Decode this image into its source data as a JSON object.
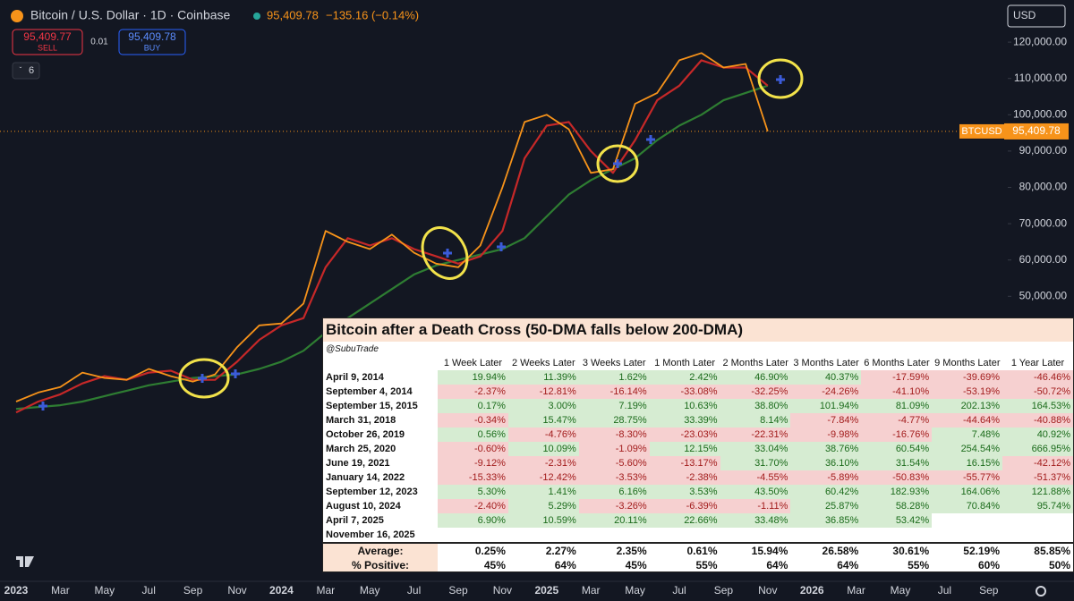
{
  "header": {
    "symbol": "Bitcoin / U.S. Dollar · 1D · Coinbase",
    "last": "95,409.78",
    "change": "−135.16 (−0.14%)",
    "sell_price": "95,409.77",
    "sell_label": "SELL",
    "spread": "0.01",
    "buy_price": "95,409.78",
    "buy_label": "BUY",
    "indicators": "6",
    "currency": "USD"
  },
  "chart_data": {
    "type": "line",
    "categories": [
      "2023",
      null,
      "Mar",
      null,
      "May",
      null,
      "Jul",
      null,
      "Sep",
      null,
      "Nov",
      null,
      "2024",
      null,
      "Mar",
      null,
      "May",
      null,
      "Jul",
      null,
      "Sep",
      null,
      "Nov",
      null,
      "2025",
      null,
      "Mar",
      null,
      "May",
      null,
      "Jul",
      null,
      "Sep",
      null,
      "Nov",
      null,
      "2026",
      null,
      "Mar",
      null,
      "May",
      null,
      "Jul",
      null,
      "Sep"
    ],
    "series": [
      {
        "name": "BTCUSD",
        "color": "#f7931a",
        "values": [
          21000,
          23500,
          25000,
          29000,
          27500,
          27000,
          30000,
          28000,
          26500,
          28500,
          36000,
          42000,
          42500,
          48000,
          68000,
          65000,
          63000,
          67000,
          62000,
          59000,
          58000,
          64000,
          80000,
          98000,
          100000,
          96000,
          84000,
          85000,
          103000,
          106000,
          115000,
          117000,
          113000,
          114000,
          95409.78,
          null,
          null,
          null,
          null,
          null,
          null,
          null,
          null,
          null,
          null
        ]
      },
      {
        "color": "#c62828",
        "values": [
          18000,
          21000,
          23000,
          26000,
          28000,
          27000,
          29000,
          29500,
          27000,
          27000,
          32000,
          38000,
          42000,
          44000,
          58000,
          66000,
          64000,
          66000,
          63000,
          61000,
          59000,
          61000,
          68000,
          88000,
          97000,
          98000,
          90000,
          84000,
          93000,
          104000,
          108000,
          115000,
          113000,
          113000,
          108000,
          null,
          null,
          null,
          null,
          null,
          null,
          null,
          null,
          null,
          null
        ]
      },
      {
        "color": "#2e7d32",
        "values": [
          19000,
          19500,
          20000,
          21000,
          22500,
          24000,
          25500,
          26500,
          27500,
          28000,
          28500,
          30000,
          32000,
          35000,
          40000,
          44000,
          48000,
          52000,
          56000,
          58500,
          60000,
          61500,
          63000,
          66000,
          72000,
          78000,
          82000,
          85000,
          88000,
          93000,
          97000,
          100000,
          104000,
          106000,
          108000,
          null,
          null,
          null,
          null,
          null,
          null,
          null,
          null,
          null,
          null
        ]
      }
    ],
    "last_price": 95409.78,
    "ylim": [
      -28500,
      131600
    ],
    "yticks": [
      {
        "value": 50000,
        "label": "50,000.00"
      },
      {
        "value": 60000,
        "label": "60,000.00"
      },
      {
        "value": 70000,
        "label": "70,000.00"
      },
      {
        "value": 80000,
        "label": "80,000.00"
      },
      {
        "value": 90000,
        "label": "90,000.00"
      },
      {
        "value": 100000,
        "label": "100,000.00"
      },
      {
        "value": 110000,
        "label": "110,000.00"
      },
      {
        "value": 120000,
        "label": "120,000.00"
      }
    ]
  },
  "table": {
    "title": "Bitcoin after a Death Cross (50-DMA falls below 200-DMA)",
    "credit": "@SubuTrade",
    "columns": [
      "1 Week Later",
      "2 Weeks Later",
      "3 Weeks Later",
      "1 Month Later",
      "2 Months Later",
      "3 Months Later",
      "6 Months Later",
      "9 Months Later",
      "1 Year Later"
    ],
    "rows": [
      {
        "date": "April 9, 2014",
        "values": [
          "19.94%",
          "11.39%",
          "1.62%",
          "2.42%",
          "46.90%",
          "40.37%",
          "-17.59%",
          "-39.69%",
          "-46.46%"
        ]
      },
      {
        "date": "September 4, 2014",
        "values": [
          "-2.37%",
          "-12.81%",
          "-16.14%",
          "-33.08%",
          "-32.25%",
          "-24.26%",
          "-41.10%",
          "-53.19%",
          "-50.72%"
        ]
      },
      {
        "date": "September 15, 2015",
        "values": [
          "0.17%",
          "3.00%",
          "7.19%",
          "10.63%",
          "38.80%",
          "101.94%",
          "81.09%",
          "202.13%",
          "164.53%"
        ]
      },
      {
        "date": "March 31, 2018",
        "values": [
          "-0.34%",
          "15.47%",
          "28.75%",
          "33.39%",
          "8.14%",
          "-7.84%",
          "-4.77%",
          "-44.64%",
          "-40.88%"
        ]
      },
      {
        "date": "October 26, 2019",
        "values": [
          "0.56%",
          "-4.76%",
          "-8.30%",
          "-23.03%",
          "-22.31%",
          "-9.98%",
          "-16.76%",
          "7.48%",
          "40.92%"
        ]
      },
      {
        "date": "March 25, 2020",
        "values": [
          "-0.60%",
          "10.09%",
          "-1.09%",
          "12.15%",
          "33.04%",
          "38.76%",
          "60.54%",
          "254.54%",
          "666.95%"
        ]
      },
      {
        "date": "June 19, 2021",
        "values": [
          "-9.12%",
          "-2.31%",
          "-5.60%",
          "-13.17%",
          "31.70%",
          "36.10%",
          "31.54%",
          "16.15%",
          "-42.12%"
        ]
      },
      {
        "date": "January 14, 2022",
        "values": [
          "-15.33%",
          "-12.42%",
          "-3.53%",
          "-2.38%",
          "-4.55%",
          "-5.89%",
          "-50.83%",
          "-55.77%",
          "-51.37%"
        ]
      },
      {
        "date": "September 12, 2023",
        "values": [
          "5.30%",
          "1.41%",
          "6.16%",
          "3.53%",
          "43.50%",
          "60.42%",
          "182.93%",
          "164.06%",
          "121.88%"
        ]
      },
      {
        "date": "August 10, 2024",
        "values": [
          "-2.40%",
          "5.29%",
          "-3.26%",
          "-6.39%",
          "-1.11%",
          "25.87%",
          "58.28%",
          "70.84%",
          "95.74%"
        ]
      },
      {
        "date": "April 7, 2025",
        "values": [
          "6.90%",
          "10.59%",
          "20.11%",
          "22.66%",
          "33.48%",
          "36.85%",
          "53.42%",
          null,
          null
        ]
      },
      {
        "date": "November 16, 2025",
        "values": [
          null,
          null,
          null,
          null,
          null,
          null,
          null,
          null,
          null
        ]
      }
    ],
    "summary": [
      {
        "label": "Average:",
        "values": [
          "0.25%",
          "2.27%",
          "2.35%",
          "0.61%",
          "15.94%",
          "26.58%",
          "30.61%",
          "52.19%",
          "85.85%"
        ]
      },
      {
        "label": "% Positive:",
        "values": [
          "45%",
          "64%",
          "45%",
          "55%",
          "64%",
          "64%",
          "55%",
          "60%",
          "50%"
        ]
      }
    ]
  }
}
